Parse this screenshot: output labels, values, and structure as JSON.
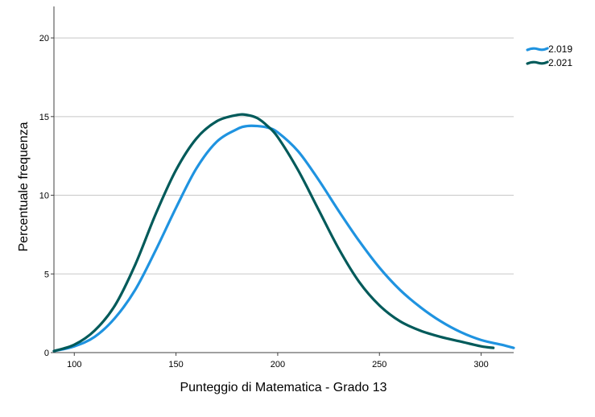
{
  "chart_data": {
    "type": "line",
    "xlabel": "Punteggio di Matematica - Grado 13",
    "ylabel": "Percentuale frequenza",
    "xlim": [
      90,
      316
    ],
    "ylim": [
      0,
      22
    ],
    "xticks": [
      100,
      150,
      200,
      250,
      300
    ],
    "yticks": [
      0,
      5,
      10,
      15,
      20
    ],
    "xtick_labels": [
      "100",
      "150",
      "200",
      "250",
      "300"
    ],
    "ytick_labels": [
      "0",
      "5",
      "10",
      "15",
      "20"
    ],
    "grid": "horizontal",
    "legend_position": "top-right",
    "series": [
      {
        "name": "2.019",
        "color": "#1f93e0",
        "x": [
          90,
          100,
          110,
          120,
          130,
          140,
          150,
          160,
          170,
          180,
          185,
          190,
          195,
          200,
          210,
          220,
          230,
          240,
          250,
          260,
          270,
          280,
          290,
          300,
          310,
          316
        ],
        "y": [
          0.1,
          0.4,
          1.0,
          2.2,
          4.0,
          6.5,
          9.2,
          11.7,
          13.4,
          14.2,
          14.4,
          14.4,
          14.3,
          14.0,
          12.8,
          11.0,
          9.0,
          7.1,
          5.4,
          4.0,
          2.9,
          2.0,
          1.3,
          0.8,
          0.5,
          0.3
        ]
      },
      {
        "name": "2.021",
        "color": "#005a5a",
        "x": [
          90,
          100,
          110,
          120,
          130,
          140,
          150,
          160,
          170,
          180,
          185,
          190,
          195,
          200,
          210,
          220,
          230,
          240,
          250,
          260,
          270,
          280,
          290,
          300,
          306
        ],
        "y": [
          0.1,
          0.5,
          1.4,
          3.0,
          5.6,
          8.8,
          11.6,
          13.6,
          14.7,
          15.1,
          15.1,
          14.9,
          14.4,
          13.7,
          11.6,
          9.1,
          6.6,
          4.5,
          3.0,
          2.0,
          1.4,
          1.0,
          0.7,
          0.4,
          0.3
        ]
      }
    ]
  }
}
